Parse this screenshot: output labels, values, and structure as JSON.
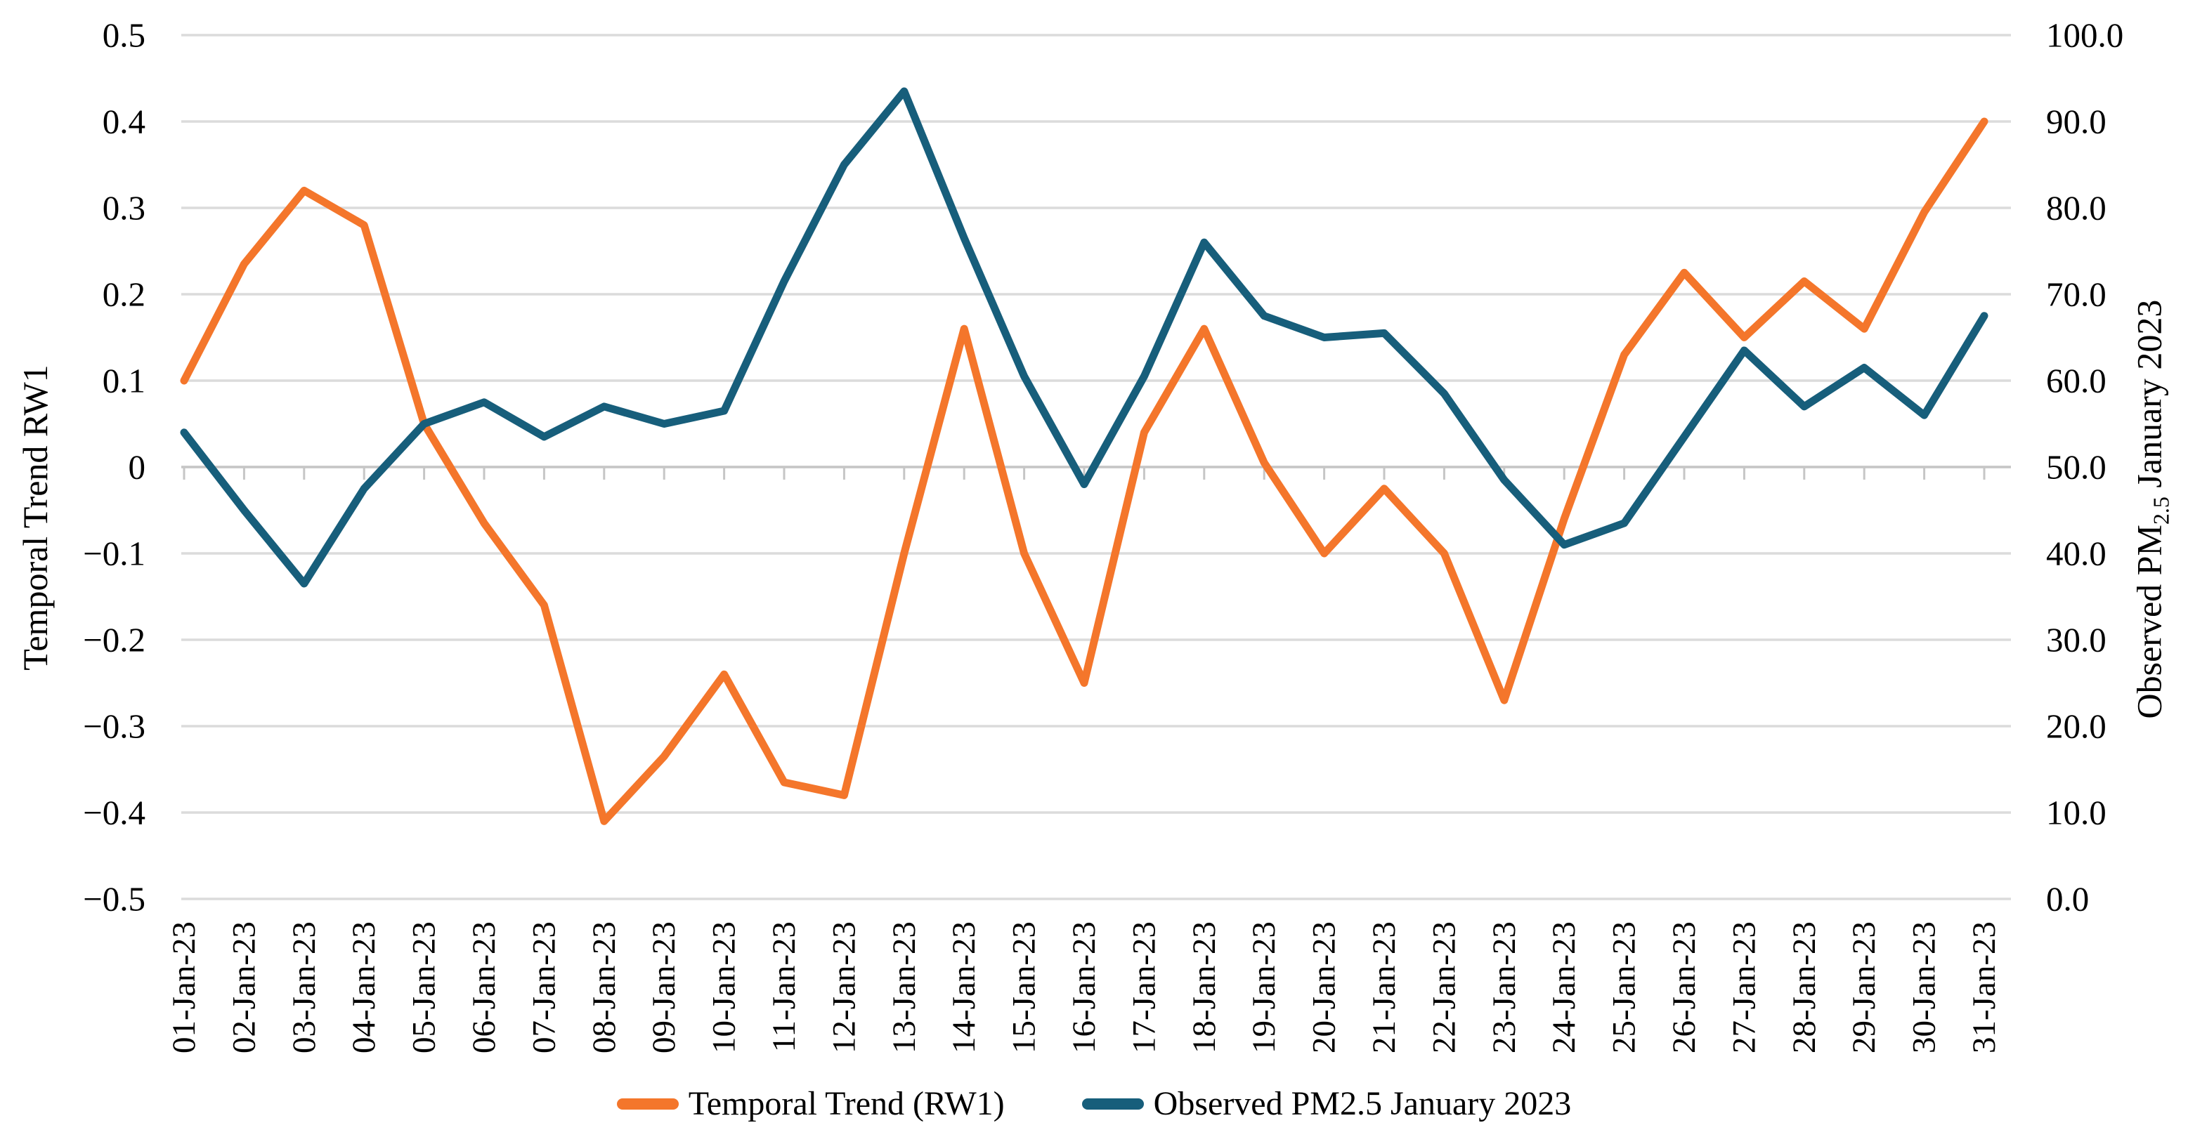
{
  "chart_data": {
    "type": "line",
    "title": "",
    "categories": [
      "01-Jan-23",
      "02-Jan-23",
      "03-Jan-23",
      "04-Jan-23",
      "05-Jan-23",
      "06-Jan-23",
      "07-Jan-23",
      "08-Jan-23",
      "09-Jan-23",
      "10-Jan-23",
      "11-Jan-23",
      "12-Jan-23",
      "13-Jan-23",
      "14-Jan-23",
      "15-Jan-23",
      "16-Jan-23",
      "17-Jan-23",
      "18-Jan-23",
      "19-Jan-23",
      "20-Jan-23",
      "21-Jan-23",
      "22-Jan-23",
      "23-Jan-23",
      "24-Jan-23",
      "25-Jan-23",
      "26-Jan-23",
      "27-Jan-23",
      "28-Jan-23",
      "29-Jan-23",
      "30-Jan-23",
      "31-Jan-23"
    ],
    "series": [
      {
        "name": "Temporal Trend (RW1)",
        "axis": "left",
        "color": "#F4762B",
        "values": [
          0.1,
          0.235,
          0.32,
          0.28,
          0.05,
          -0.065,
          -0.16,
          -0.41,
          -0.335,
          -0.24,
          -0.365,
          -0.38,
          -0.1,
          0.16,
          -0.1,
          -0.25,
          0.04,
          0.16,
          0.005,
          -0.1,
          -0.025,
          -0.1,
          -0.27,
          -0.06,
          0.13,
          0.225,
          0.15,
          0.215,
          0.16,
          0.295,
          0.4
        ]
      },
      {
        "name": "Observed PM2.5 January 2023",
        "axis": "right",
        "color": "#175E7B",
        "values": [
          54,
          45,
          36.5,
          47.5,
          55,
          57.5,
          53.5,
          57,
          55,
          56.5,
          71.5,
          85,
          93.5,
          76.5,
          60.5,
          48,
          60.5,
          76,
          67.5,
          65,
          65.5,
          58.5,
          48.5,
          41,
          43.5,
          53.5,
          63.5,
          57,
          61.5,
          56,
          67.5
        ]
      }
    ],
    "left_axis": {
      "title": "Temporal Trend RW1",
      "min": -0.5,
      "max": 0.5,
      "tick_labels": [
        "0.5",
        "0.4",
        "0.3",
        "0.2",
        "0.1",
        "0",
        "−0.1",
        "−0.2",
        "−0.3",
        "−0.4",
        "−0.5"
      ]
    },
    "right_axis": {
      "title_parts": {
        "prefix": "Observed PM",
        "sub": "2.5",
        "suffix": " January 2023"
      },
      "min": 0.0,
      "max": 100.0,
      "tick_labels": [
        "100.0",
        "90.0",
        "80.0",
        "70.0",
        "60.0",
        "50.0",
        "40.0",
        "30.0",
        "20.0",
        "10.0",
        "0.0"
      ]
    },
    "legend": [
      {
        "label": "Temporal Trend (RW1)",
        "color": "#F4762B"
      },
      {
        "label": "Observed PM2.5 January 2023",
        "color": "#175E7B"
      }
    ],
    "grid": true,
    "legend_position": "bottom",
    "colors": {
      "gridline": "#DBDBDB",
      "axisline": "#C6C6C6",
      "text": "#000000"
    }
  }
}
